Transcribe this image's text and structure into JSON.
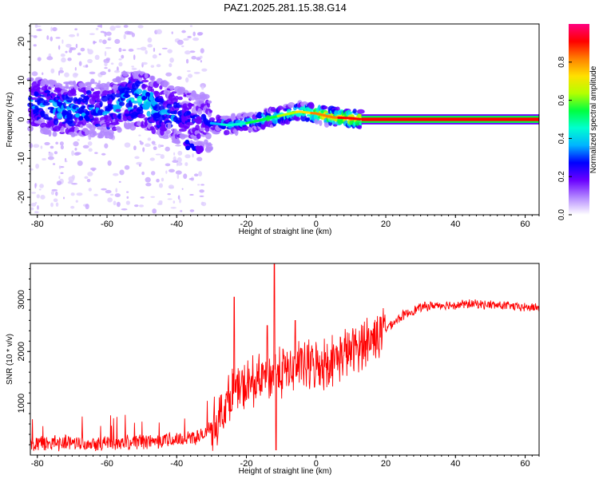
{
  "title": "PAZ1.2025.281.15.38.G14",
  "chart_data": [
    {
      "type": "heatmap",
      "title": "PAZ1.2025.281.15.38.G14",
      "xlabel": "Height of straight line (km)",
      "ylabel": "Frequency (Hz)",
      "xlim": [
        -82,
        64
      ],
      "ylim": [
        -24.5,
        24.5
      ],
      "x_ticks": [
        "-80",
        "-60",
        "-40",
        "-20",
        "0",
        "20",
        "40",
        "60"
      ],
      "x_tick_values": [
        -80,
        -60,
        -40,
        -20,
        0,
        20,
        40,
        60
      ],
      "y_ticks": [
        "-20",
        "-10",
        "0",
        "10",
        "20"
      ],
      "y_tick_values": [
        -20,
        -10,
        0,
        10,
        20
      ],
      "ridge": {
        "x": [
          -82,
          -75,
          -70,
          -65,
          -60,
          -55,
          -50,
          -45,
          -40,
          -35,
          -30,
          -25,
          -20,
          -15,
          -10,
          -5,
          0,
          5,
          10,
          13,
          20,
          30,
          40,
          50,
          64
        ],
        "freq": [
          4,
          3,
          2.5,
          3,
          2,
          5,
          5,
          3,
          1,
          0,
          -1,
          -1.5,
          -1,
          0,
          1,
          2,
          1.5,
          0.5,
          0.3,
          0,
          0,
          0,
          0,
          0,
          0
        ],
        "amplitude": [
          0.3,
          0.35,
          0.35,
          0.3,
          0.3,
          0.35,
          0.4,
          0.35,
          0.3,
          0.2,
          0.25,
          0.35,
          0.4,
          0.45,
          0.5,
          0.6,
          0.7,
          0.75,
          0.8,
          0.85,
          0.9,
          0.9,
          0.9,
          0.9,
          0.9
        ]
      },
      "blobs": [
        {
          "x": -36,
          "freq": -6.5,
          "amplitude": 0.3
        },
        {
          "x": -34,
          "freq": -8,
          "amplitude": 0.25
        },
        {
          "x": -67,
          "freq": 1,
          "amplitude": 0.35
        },
        {
          "x": -48,
          "freq": 6,
          "amplitude": 0.4
        }
      ],
      "colorbar": {
        "label": "Normalized spectral amplitude",
        "ticks": [
          "0.0",
          "0.2",
          "0.4",
          "0.6",
          "0.8"
        ],
        "tick_values": [
          0,
          0.2,
          0.4,
          0.6,
          0.8
        ],
        "range": [
          0,
          1
        ],
        "colors": [
          "#ffffff",
          "#b388ff",
          "#6a00ff",
          "#0000ff",
          "#00b4ff",
          "#00ffd0",
          "#00ff40",
          "#b4ff00",
          "#ffe000",
          "#ff8000",
          "#ff0000",
          "#ff0080"
        ]
      },
      "series_color": "#ff0000"
    },
    {
      "type": "line",
      "xlabel": "Height of straight line (km)",
      "ylabel": "SNR (10 * v/v)",
      "xlim": [
        -82,
        64
      ],
      "ylim": [
        0,
        3700
      ],
      "x_ticks": [
        "-80",
        "-60",
        "-40",
        "-20",
        "0",
        "20",
        "40",
        "60"
      ],
      "x_tick_values": [
        -80,
        -60,
        -40,
        -20,
        0,
        20,
        40,
        60
      ],
      "y_ticks": [
        "1000",
        "2000",
        "3000"
      ],
      "y_tick_values": [
        1000,
        2000,
        3000
      ],
      "line_color": "#ff0000",
      "baseline_trend": {
        "x": [
          -82,
          -70,
          -60,
          -50,
          -40,
          -32,
          -28,
          -24,
          -20,
          -15,
          -10,
          -5,
          0,
          5,
          10,
          15,
          20,
          25,
          30,
          35,
          40,
          45,
          50,
          55,
          60,
          64
        ],
        "y": [
          200,
          250,
          230,
          260,
          300,
          380,
          700,
          1200,
          1300,
          1500,
          1600,
          1700,
          1750,
          1850,
          2000,
          2200,
          2450,
          2700,
          2850,
          2900,
          2900,
          2920,
          2900,
          2880,
          2850,
          2850
        ]
      },
      "peaks": [
        {
          "x": -23.5,
          "y": 3050
        },
        {
          "x": -12,
          "y": 3700
        },
        {
          "x": -11.5,
          "y": 100
        },
        {
          "x": -14,
          "y": 2500
        },
        {
          "x": -6,
          "y": 2600
        }
      ]
    }
  ]
}
